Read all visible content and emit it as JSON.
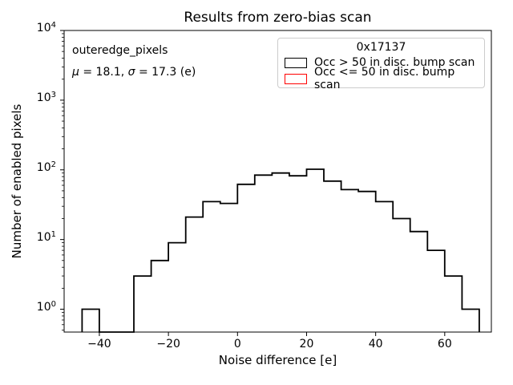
{
  "figure": {
    "title": "Results from zero-bias scan"
  },
  "axes": {
    "xlabel": "Noise difference [e]",
    "ylabel": "Number of enabled pixels"
  },
  "annotation": {
    "name": "outeredge_pixels",
    "mu_sym": "μ",
    "mu_rest": " = 18.1, ",
    "sigma_sym": "σ",
    "sigma_rest": " = 17.3 (e)"
  },
  "legend": {
    "title": "0x17137",
    "entries": [
      {
        "label": "Occ > 50 in disc. bump scan",
        "edge_color": "#000000"
      },
      {
        "label": "Occ <= 50 in disc. bump scan",
        "edge_color": "#ff0000"
      }
    ]
  },
  "chart_data": {
    "type": "bar",
    "subtype": "step-histogram",
    "title": "Results from zero-bias scan",
    "xlabel": "Noise difference [e]",
    "ylabel": "Number of enabled pixels",
    "yscale": "log",
    "grid": false,
    "legend_position": "upper right",
    "xlim": [
      -50.2,
      73.5
    ],
    "ylim": [
      0.47,
      10000
    ],
    "x_ticks": [
      -40,
      -20,
      0,
      20,
      40,
      60
    ],
    "y_tick_exponents": [
      0,
      1,
      2,
      3,
      4
    ],
    "series": [
      {
        "name": "Occ > 50 in disc. bump scan",
        "color": "#000000",
        "bin_edges": [
          -45,
          -40,
          -35,
          -30,
          -25,
          -20,
          -15,
          -10,
          -5,
          0,
          5,
          10,
          15,
          20,
          25,
          30,
          35,
          40,
          45,
          50,
          55,
          60,
          65,
          70
        ],
        "counts": [
          1,
          0,
          0,
          3,
          5,
          9,
          21,
          35,
          33,
          62,
          84,
          90,
          82,
          102,
          69,
          52,
          49,
          35,
          20,
          13,
          7,
          3,
          1
        ]
      },
      {
        "name": "Occ <= 50 in disc. bump scan",
        "color": "#ff0000",
        "bin_edges": [],
        "counts": []
      }
    ]
  }
}
